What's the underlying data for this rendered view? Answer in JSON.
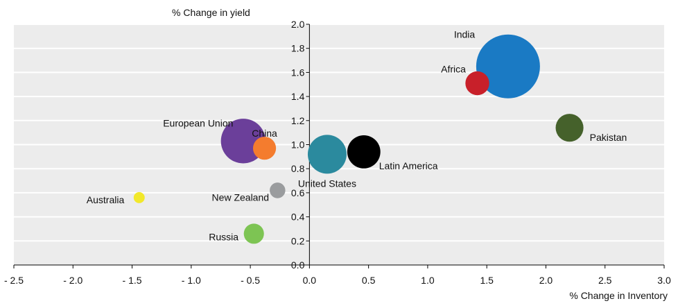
{
  "chart_data": {
    "type": "bubble",
    "title": "",
    "xlabel": "% Change in Inventory",
    "ylabel": "% Change in yield",
    "xlim": [
      -2.5,
      3.0
    ],
    "ylim": [
      0.0,
      2.0
    ],
    "x_ticks": [
      "- 2.5",
      "- 2.0",
      "- 1.5",
      "- 1.0",
      "- 0.5",
      "0.0",
      "0.5",
      "1.0",
      "1.5",
      "2.0",
      "2.5",
      "3.0"
    ],
    "y_ticks": [
      "0.0",
      "0.2",
      "0.4",
      "0.6",
      "0.8",
      "1.0",
      "1.2",
      "1.4",
      "1.6",
      "1.8",
      "2.0"
    ],
    "grid": true,
    "series": [
      {
        "name": "India",
        "x": 1.68,
        "y": 1.65,
        "size": 100,
        "color": "#1a7ac4"
      },
      {
        "name": "Africa",
        "x": 1.42,
        "y": 1.51,
        "size": 14,
        "color": "#c8202a"
      },
      {
        "name": "Pakistan",
        "x": 2.2,
        "y": 1.14,
        "size": 19,
        "color": "#45612b"
      },
      {
        "name": "European Union",
        "x": -0.56,
        "y": 1.03,
        "size": 49,
        "color": "#6b3f9a"
      },
      {
        "name": "China",
        "x": -0.38,
        "y": 0.97,
        "size": 13,
        "color": "#f47c2e"
      },
      {
        "name": "United States",
        "x": 0.15,
        "y": 0.92,
        "size": 37,
        "color": "#2b8a9e"
      },
      {
        "name": "Latin America",
        "x": 0.46,
        "y": 0.94,
        "size": 27,
        "color": "#000000"
      },
      {
        "name": "New Zealand",
        "x": -0.27,
        "y": 0.62,
        "size": 6,
        "color": "#9a9c9e"
      },
      {
        "name": "Australia",
        "x": -1.44,
        "y": 0.56,
        "size": 3,
        "color": "#f2e82b"
      },
      {
        "name": "Russia",
        "x": -0.47,
        "y": 0.26,
        "size": 10,
        "color": "#7dc453"
      }
    ]
  }
}
